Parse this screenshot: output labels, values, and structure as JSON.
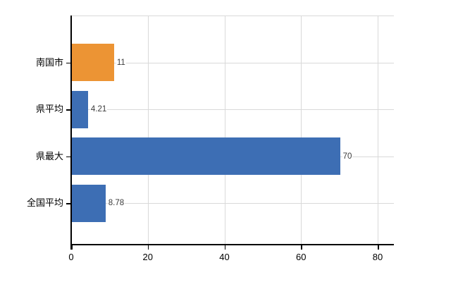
{
  "chart_data": {
    "type": "bar",
    "orientation": "horizontal",
    "categories": [
      "南国市",
      "県平均",
      "県最大",
      "全国平均"
    ],
    "values": [
      11,
      4.21,
      70,
      8.78
    ],
    "value_labels": [
      "11",
      "4.21",
      "70",
      "8.78"
    ],
    "bar_colors": [
      "#ec9434",
      "#3d6eb4",
      "#3d6eb4",
      "#3d6eb4"
    ],
    "xticks": [
      0,
      20,
      40,
      60,
      80
    ],
    "xtick_labels": [
      "0",
      "20",
      "40",
      "60",
      "80"
    ],
    "xlim": [
      0,
      84.4
    ],
    "grid": true,
    "legend": "none",
    "colors": {
      "orange_bar": "#ec9434",
      "blue_bar": "#3d6eb4",
      "gridline": "#d9d9d9",
      "axis": "#000000",
      "tick_label": "#000000",
      "category_label": "#000000",
      "value_label": "#3a3a3a",
      "background": "#ffffff"
    }
  }
}
